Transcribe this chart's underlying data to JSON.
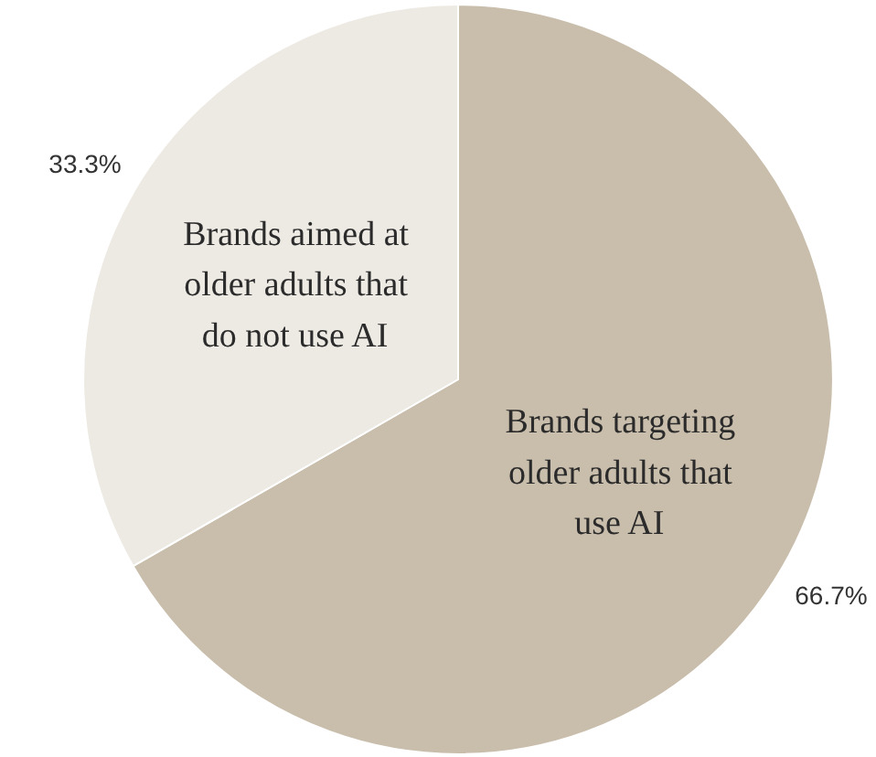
{
  "chart_data": {
    "type": "pie",
    "categories": [
      "Brands targeting older adults that use AI",
      "Brands aimed at older adults that do not use AI"
    ],
    "values": [
      66.7,
      33.3
    ],
    "colors": [
      "#c9bdab",
      "#ede9e3"
    ],
    "value_labels": [
      "66.7%",
      "33.3%"
    ]
  }
}
